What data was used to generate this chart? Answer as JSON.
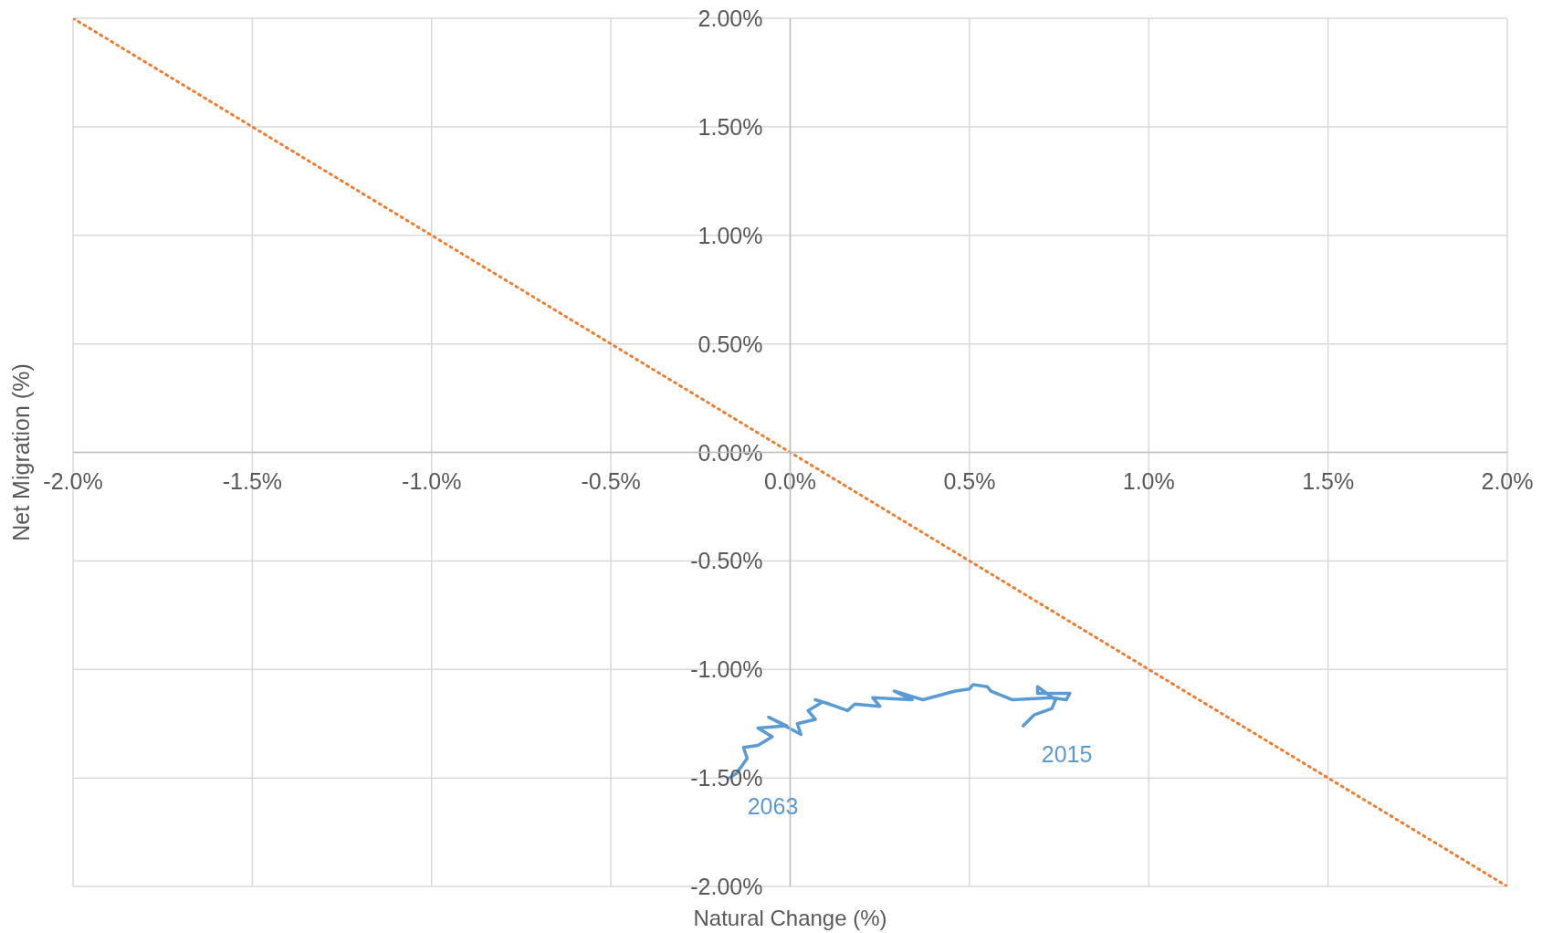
{
  "chart_data": {
    "type": "line",
    "xlabel": "Natural Change (%)",
    "ylabel": "Net Migration (%)",
    "xlim": [
      -2,
      2
    ],
    "xticks": [
      {
        "value": -2,
        "label": "-2.0%"
      },
      {
        "value": -1.5,
        "label": "-1.5%"
      },
      {
        "value": -1,
        "label": "-1.0%"
      },
      {
        "value": -0.5,
        "label": "-0.5%"
      },
      {
        "value": 0,
        "label": "0.0%"
      },
      {
        "value": 0.5,
        "label": "0.5%"
      },
      {
        "value": 1,
        "label": "1.0%"
      },
      {
        "value": 1.5,
        "label": "1.5%"
      },
      {
        "value": 2,
        "label": "2.0%"
      }
    ],
    "ylim": [
      -2,
      2
    ],
    "yticks": [
      {
        "value": -2,
        "label": "-2.00%"
      },
      {
        "value": -1.5,
        "label": "-1.50%"
      },
      {
        "value": -1,
        "label": "-1.00%"
      },
      {
        "value": -0.5,
        "label": "-0.50%"
      },
      {
        "value": 0,
        "label": "0.00%"
      },
      {
        "value": 0.5,
        "label": "0.50%"
      },
      {
        "value": 1,
        "label": "1.00%"
      },
      {
        "value": 1.5,
        "label": "1.50%"
      },
      {
        "value": 2,
        "label": "2.00%"
      }
    ],
    "grid": true,
    "marker": "none",
    "series": [
      {
        "color": "#5b9bd5",
        "line_style": "solid",
        "x": [
          0.65,
          0.68,
          0.73,
          0.74,
          0.69,
          0.69,
          0.78,
          0.77,
          0.73,
          0.62,
          0.56,
          0.55,
          0.51,
          0.5,
          0.46,
          0.37,
          0.29,
          0.34,
          0.23,
          0.25,
          0.18,
          0.16,
          0.11,
          0.07,
          0.09,
          0.05,
          0.07,
          0.02,
          0.03,
          -0.06,
          -0.01,
          -0.09,
          -0.05,
          -0.09,
          -0.13,
          -0.12,
          -0.15,
          -0.17
        ],
        "values": [
          -1.26,
          -1.21,
          -1.18,
          -1.14,
          -1.08,
          -1.11,
          -1.11,
          -1.14,
          -1.13,
          -1.14,
          -1.1,
          -1.08,
          -1.07,
          -1.09,
          -1.1,
          -1.14,
          -1.1,
          -1.14,
          -1.13,
          -1.17,
          -1.16,
          -1.19,
          -1.16,
          -1.14,
          -1.15,
          -1.19,
          -1.23,
          -1.25,
          -1.3,
          -1.22,
          -1.26,
          -1.27,
          -1.31,
          -1.35,
          -1.36,
          -1.41,
          -1.48,
          -1.5
        ]
      },
      {
        "color": "#ed7d31",
        "line_style": "dotted",
        "x": [
          -2,
          2
        ],
        "values": [
          2,
          -2
        ]
      }
    ],
    "annotations": [
      {
        "text": "2015",
        "x": 0.65,
        "y": -1.26
      },
      {
        "text": "2063",
        "x": -0.17,
        "y": -1.5
      }
    ]
  }
}
